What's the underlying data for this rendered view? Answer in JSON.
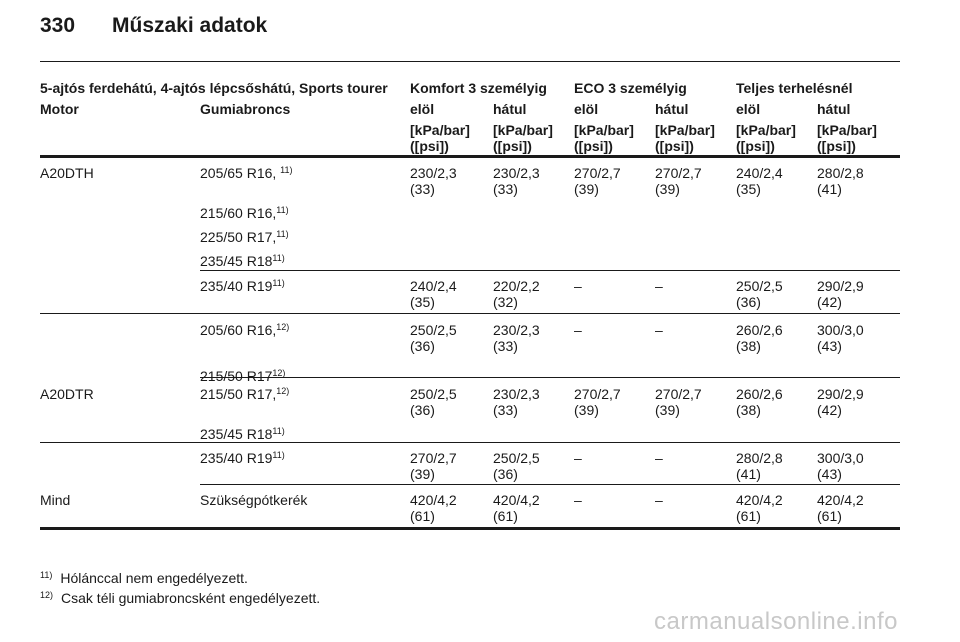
{
  "page": {
    "number": "330",
    "title": "Műszaki adatok"
  },
  "table": {
    "group_headers": [
      "5-ajtós ferdehátú, 4-ajtós lépcsőshátú, Sports tourer",
      "Komfort 3 személyig",
      "ECO 3 személyig",
      "Teljes terhelésnél"
    ],
    "col_headers": [
      "Motor",
      "Gumiabroncs",
      "elöl",
      "hátul",
      "elöl",
      "hátul",
      "elöl",
      "hátul"
    ],
    "unit_line1": "[kPa/bar]",
    "unit_line2": "([psi])",
    "rows": [
      {
        "motor": "A20DTH",
        "tires": [
          {
            "t": "205/65 R16, ",
            "s": "11)"
          },
          {
            "t": "215/60 R16,",
            "s": "11)"
          },
          {
            "t": "225/50 R17,",
            "s": "11)"
          },
          {
            "t": "235/45 R18",
            "s": "11)"
          }
        ],
        "values": [
          [
            "230/2,3",
            "(33)"
          ],
          [
            "230/2,3",
            "(33)"
          ],
          [
            "270/2,7",
            "(39)"
          ],
          [
            "270/2,7",
            "(39)"
          ],
          [
            "240/2,4",
            "(35)"
          ],
          [
            "280/2,8",
            "(41)"
          ]
        ]
      },
      {
        "motor": "",
        "tires": [
          {
            "t": "235/40 R19",
            "s": "11)"
          }
        ],
        "values": [
          [
            "240/2,4",
            "(35)"
          ],
          [
            "220/2,2",
            "(32)"
          ],
          [
            "–",
            ""
          ],
          [
            "–",
            ""
          ],
          [
            "250/2,5",
            "(36)"
          ],
          [
            "290/2,9",
            "(42)"
          ]
        ]
      },
      {
        "motor": "",
        "tires": [
          {
            "t": "205/60 R16,",
            "s": "12)"
          },
          {
            "t": "215/50 R17",
            "s": "12)"
          }
        ],
        "values": [
          [
            "250/2,5",
            "(36)"
          ],
          [
            "230/2,3",
            "(33)"
          ],
          [
            "–",
            ""
          ],
          [
            "–",
            ""
          ],
          [
            "260/2,6",
            "(38)"
          ],
          [
            "300/3,0",
            "(43)"
          ]
        ]
      },
      {
        "motor": "A20DTR",
        "tires": [
          {
            "t": "215/50 R17,",
            "s": "12)"
          },
          {
            "t": "235/45 R18",
            "s": "11)"
          }
        ],
        "values": [
          [
            "250/2,5",
            "(36)"
          ],
          [
            "230/2,3",
            "(33)"
          ],
          [
            "270/2,7",
            "(39)"
          ],
          [
            "270/2,7",
            "(39)"
          ],
          [
            "260/2,6",
            "(38)"
          ],
          [
            "290/2,9",
            "(42)"
          ]
        ]
      },
      {
        "motor": "",
        "tires": [
          {
            "t": "235/40 R19",
            "s": "11)"
          }
        ],
        "values": [
          [
            "270/2,7",
            "(39)"
          ],
          [
            "250/2,5",
            "(36)"
          ],
          [
            "–",
            ""
          ],
          [
            "–",
            ""
          ],
          [
            "280/2,8",
            "(41)"
          ],
          [
            "300/3,0",
            "(43)"
          ]
        ]
      },
      {
        "motor": "Mind",
        "tires": [
          {
            "t": "Szükségpótkerék",
            "s": ""
          }
        ],
        "values": [
          [
            "420/4,2",
            "(61)"
          ],
          [
            "420/4,2",
            "(61)"
          ],
          [
            "–",
            ""
          ],
          [
            "–",
            ""
          ],
          [
            "420/4,2",
            "(61)"
          ],
          [
            "420/4,2",
            "(61)"
          ]
        ]
      }
    ]
  },
  "footnotes": [
    {
      "mark": "11)",
      "text": "Hólánccal nem engedélyezett."
    },
    {
      "mark": "12)",
      "text": "Csak téli gumiabroncsként engedélyezett."
    }
  ],
  "watermark": "carmanualsonline.info"
}
